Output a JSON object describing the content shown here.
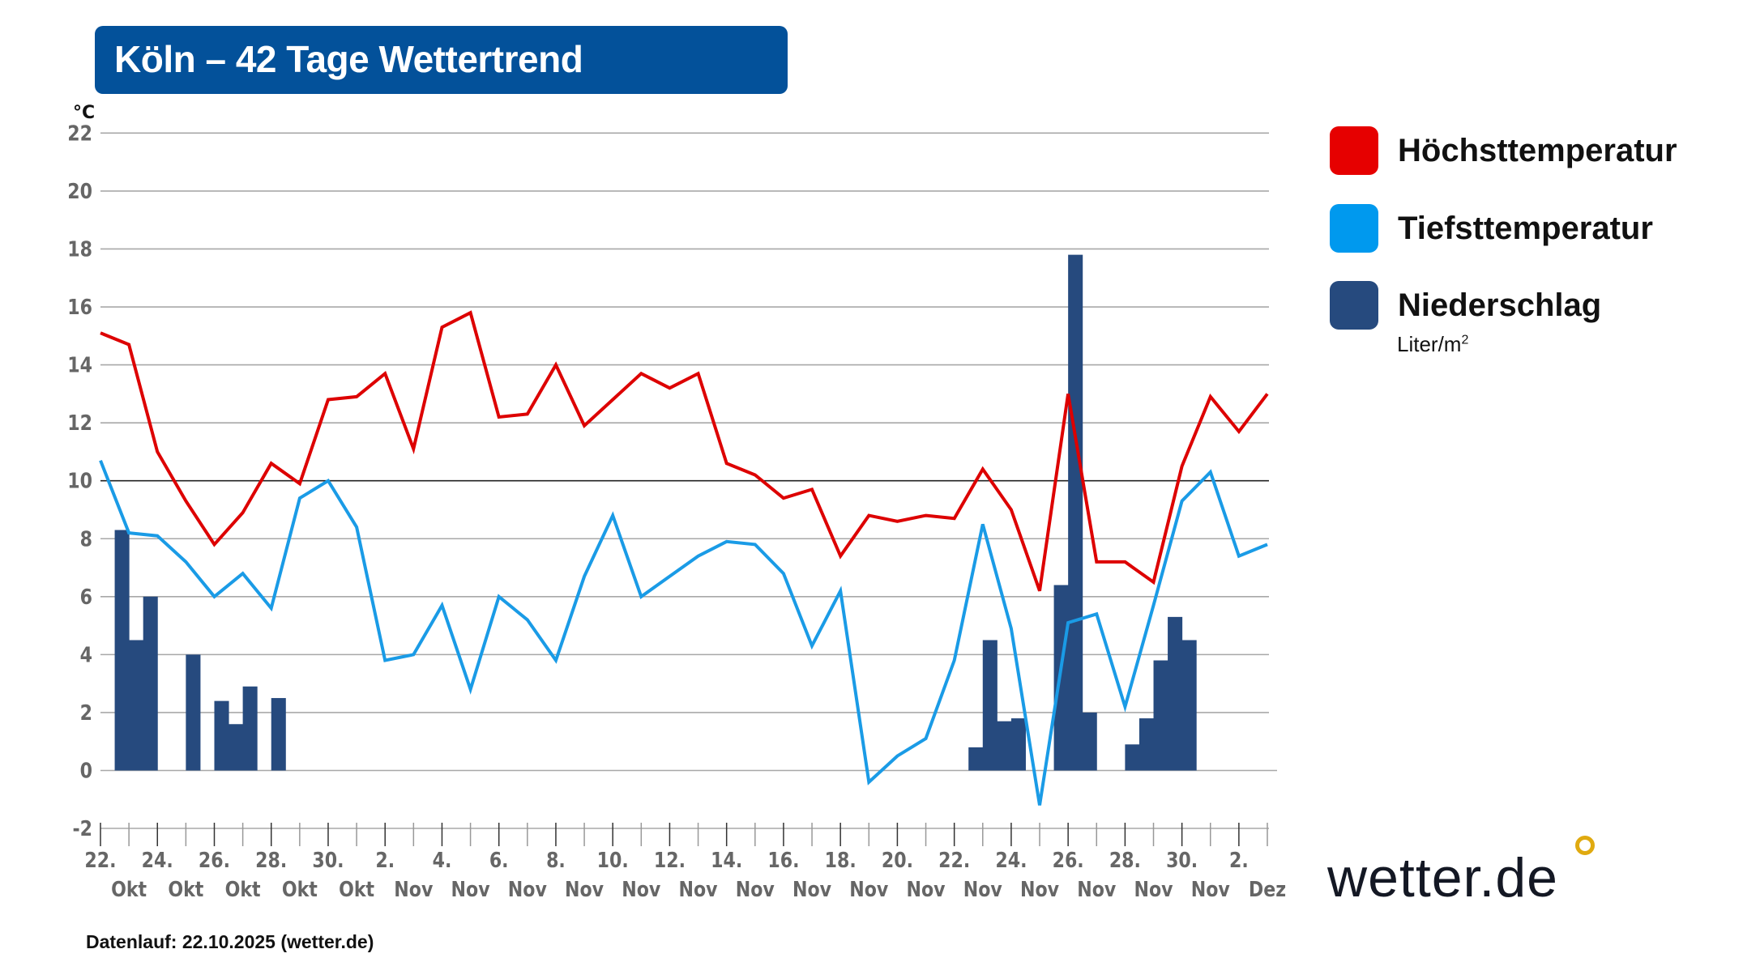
{
  "title": "Köln – 42 Tage Wettertrend",
  "legend": {
    "items": [
      {
        "label": "Höchsttemperatur",
        "color": "#e60000"
      },
      {
        "label": "Tiefsttemperatur",
        "color": "#0099ee"
      },
      {
        "label": "Niederschlag",
        "color": "#264a7e"
      }
    ],
    "unit_base": "Liter/m",
    "unit_sup": "2"
  },
  "footer": "Datenlauf: 22.10.2025 (wetter.de)",
  "logo": "wetter.de",
  "chart_data": {
    "type": "line+bar",
    "ylabel": "°C",
    "ylim": [
      -2,
      22
    ],
    "yticks": [
      22,
      20,
      18,
      16,
      14,
      12,
      10,
      8,
      6,
      4,
      2,
      0,
      -2
    ],
    "grid": true,
    "legend_position": "right",
    "x_day_labels": [
      "22.",
      "24.",
      "26.",
      "28.",
      "30.",
      "2.",
      "4.",
      "6.",
      "8.",
      "10.",
      "12.",
      "14.",
      "16.",
      "18.",
      "20.",
      "22.",
      "24.",
      "26.",
      "28.",
      "30.",
      "2."
    ],
    "x_month_labels": [
      "Okt",
      "Okt",
      "Okt",
      "Okt",
      "Okt",
      "Nov",
      "Nov",
      "Nov",
      "Nov",
      "Nov",
      "Nov",
      "Nov",
      "Nov",
      "Nov",
      "Nov",
      "Nov",
      "Nov",
      "Nov",
      "Nov",
      "Nov",
      "Dez"
    ],
    "series": [
      {
        "name": "Höchsttemperatur",
        "type": "line",
        "color": "#dd0000",
        "values": [
          15.1,
          14.7,
          11.0,
          9.3,
          7.8,
          8.9,
          10.6,
          9.9,
          12.8,
          12.9,
          13.7,
          11.1,
          15.3,
          15.8,
          12.2,
          12.3,
          14.0,
          11.9,
          12.8,
          13.7,
          13.2,
          13.7,
          10.6,
          10.2,
          9.4,
          9.7,
          7.4,
          8.8,
          8.6,
          8.8,
          8.7,
          10.4,
          9.0,
          6.2,
          13.0,
          7.2,
          7.2,
          6.5,
          10.5,
          12.9,
          11.7,
          13.0
        ]
      },
      {
        "name": "Tiefsttemperatur",
        "type": "line",
        "color": "#1a9be6",
        "values": [
          10.7,
          8.2,
          8.1,
          7.2,
          6.0,
          6.8,
          5.6,
          9.4,
          10.0,
          8.4,
          3.8,
          4.0,
          5.7,
          2.8,
          6.0,
          5.2,
          3.8,
          6.7,
          8.8,
          6.0,
          6.7,
          7.4,
          7.9,
          7.8,
          6.8,
          4.3,
          6.2,
          -0.4,
          0.5,
          1.1,
          3.8,
          8.5,
          4.9,
          -1.2,
          5.1,
          5.4,
          2.2,
          5.7,
          9.3,
          10.3,
          7.4,
          7.8
        ]
      },
      {
        "name": "Niederschlag",
        "type": "bar",
        "unit": "Liter/m²",
        "color": "#264a7e",
        "interval": "12h",
        "values": [
          0,
          8.3,
          4.5,
          6.0,
          0,
          0,
          4.0,
          0,
          2.4,
          1.6,
          2.9,
          0,
          2.5,
          0,
          0,
          0,
          0,
          0,
          0,
          0,
          0,
          0,
          0,
          0,
          0,
          0,
          0,
          0,
          0,
          0,
          0,
          0,
          0,
          0,
          0,
          0,
          0,
          0,
          0,
          0,
          0,
          0,
          0,
          0,
          0,
          0,
          0,
          0,
          0,
          0,
          0,
          0,
          0,
          0,
          0,
          0,
          0,
          0,
          0,
          0,
          0,
          0.8,
          4.5,
          1.7,
          1.8,
          0,
          0,
          6.4,
          17.8,
          2.0,
          0,
          0,
          0.9,
          1.8,
          3.8,
          5.3,
          4.5,
          0,
          0,
          0,
          0,
          0
        ]
      }
    ]
  }
}
